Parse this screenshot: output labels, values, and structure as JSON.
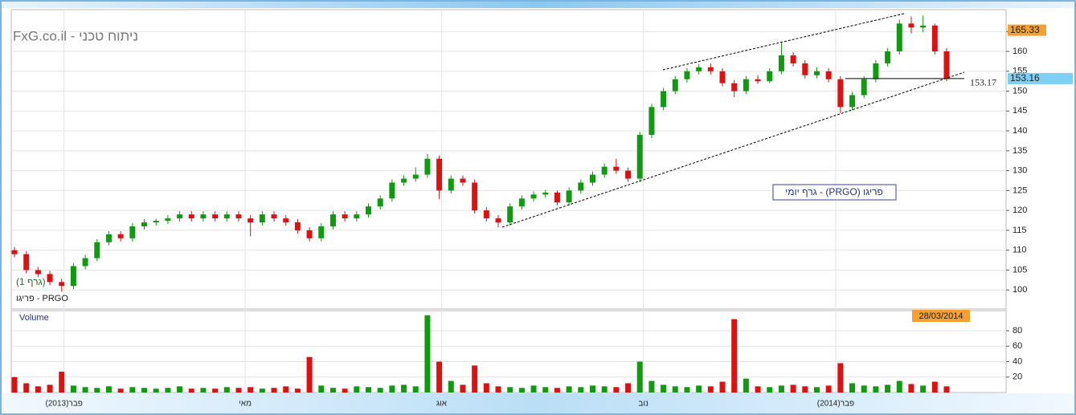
{
  "chart_data": [
    {
      "type": "candlestick",
      "title": "FxG.co.il - ניתוח טכני",
      "subtitle": "גרף יומי - (PRGO) פריגו",
      "label": "פריגו - PRGO",
      "note": "(גרף 1)",
      "up_color": "#119911",
      "down_color": "#dd1111",
      "ohlc": [
        [
          110,
          110.8,
          108.2,
          109
        ],
        [
          109,
          109.8,
          104.2,
          105
        ],
        [
          105,
          105.8,
          103.2,
          104
        ],
        [
          104,
          104.8,
          101.2,
          102
        ],
        [
          102,
          102.8,
          99.6,
          101
        ],
        [
          101,
          106.8,
          100.2,
          106
        ],
        [
          106,
          108.8,
          105.2,
          108
        ],
        [
          108,
          112.8,
          107.2,
          112
        ],
        [
          112,
          114.8,
          111.2,
          114
        ],
        [
          114,
          114.8,
          112.2,
          113
        ],
        [
          113,
          116.8,
          112.2,
          116
        ],
        [
          116,
          117.8,
          115.2,
          117
        ],
        [
          117,
          117.9,
          116.2,
          117.4
        ],
        [
          117.4,
          118.8,
          116.6,
          118
        ],
        [
          118,
          119.8,
          117.2,
          119
        ],
        [
          119,
          119.8,
          117.2,
          118
        ],
        [
          118,
          119.8,
          117.2,
          119
        ],
        [
          119,
          119.8,
          117.2,
          118
        ],
        [
          118,
          119.8,
          117.2,
          119
        ],
        [
          119,
          119.8,
          117.2,
          118
        ],
        [
          118,
          118.8,
          113.5,
          117
        ],
        [
          117,
          119.8,
          116.2,
          119
        ],
        [
          119,
          119.8,
          117.2,
          118
        ],
        [
          118,
          118.8,
          116.2,
          117
        ],
        [
          117,
          117.8,
          114.2,
          115
        ],
        [
          115,
          115.8,
          112.2,
          113
        ],
        [
          113,
          116.8,
          112.2,
          116
        ],
        [
          116,
          119.8,
          115.2,
          119
        ],
        [
          119,
          119.8,
          117.2,
          118
        ],
        [
          118,
          119.8,
          117.2,
          119
        ],
        [
          119,
          121.8,
          118.2,
          121
        ],
        [
          121,
          123.8,
          120.2,
          123
        ],
        [
          123,
          127.8,
          122.2,
          127
        ],
        [
          127,
          128.8,
          126.2,
          128
        ],
        [
          128,
          130.8,
          127.2,
          129
        ],
        [
          129,
          134.2,
          128.2,
          133
        ],
        [
          133,
          133.8,
          122.8,
          125
        ],
        [
          125,
          128.8,
          124.2,
          128
        ],
        [
          128,
          128.8,
          126.2,
          127
        ],
        [
          127,
          127.8,
          119.2,
          120
        ],
        [
          120,
          120.8,
          117.2,
          118
        ],
        [
          118,
          118.8,
          115.8,
          117
        ],
        [
          117,
          121.8,
          116.2,
          121
        ],
        [
          121,
          123.8,
          120.2,
          123
        ],
        [
          123,
          124.8,
          122.2,
          124
        ],
        [
          124,
          125.2,
          123.2,
          124.5
        ],
        [
          124.5,
          125,
          121.2,
          122
        ],
        [
          122,
          125.8,
          121.2,
          125
        ],
        [
          125,
          127.8,
          124.2,
          127
        ],
        [
          127,
          129.8,
          126.2,
          129
        ],
        [
          129,
          131.8,
          128.2,
          131
        ],
        [
          131,
          133,
          129.2,
          130
        ],
        [
          130,
          130.8,
          127.2,
          128
        ],
        [
          128,
          139.8,
          127.2,
          139
        ],
        [
          139,
          146.8,
          138.2,
          146
        ],
        [
          146,
          150.8,
          145.2,
          150
        ],
        [
          150,
          153.8,
          149.2,
          153
        ],
        [
          153,
          155.8,
          152.2,
          155
        ],
        [
          155,
          156.8,
          154.2,
          156
        ],
        [
          156,
          157,
          154.2,
          155
        ],
        [
          155,
          155.8,
          151.2,
          152
        ],
        [
          152,
          152.8,
          148.5,
          150
        ],
        [
          150,
          153.8,
          149.2,
          153
        ],
        [
          153,
          154,
          151.8,
          152.5
        ],
        [
          152.5,
          155.8,
          152,
          155
        ],
        [
          155,
          162.2,
          154.2,
          159
        ],
        [
          159,
          159.8,
          156.2,
          157
        ],
        [
          157,
          157.8,
          153.2,
          154
        ],
        [
          154,
          156,
          153.2,
          155
        ],
        [
          155,
          155.8,
          152.2,
          153
        ],
        [
          153,
          153.8,
          144.5,
          146
        ],
        [
          146,
          149.8,
          145.2,
          149
        ],
        [
          149,
          153.8,
          148.2,
          153
        ],
        [
          153,
          157.8,
          152.2,
          157
        ],
        [
          157,
          160.8,
          156.2,
          160
        ],
        [
          160,
          168,
          159.2,
          167
        ],
        [
          167,
          168.8,
          164.5,
          166
        ],
        [
          166,
          169,
          164.8,
          166.5
        ],
        [
          166.5,
          167,
          159.2,
          160
        ],
        [
          160,
          160.8,
          152.5,
          153.16
        ]
      ],
      "xticks": [
        {
          "value": 4.2,
          "label": "(2013)פבר"
        },
        {
          "value": 19.55,
          "label": "מאי"
        },
        {
          "value": 36.2,
          "label": "אוג"
        },
        {
          "value": 53.3,
          "label": "נוב"
        },
        {
          "value": 69.6,
          "label": "(2014)פבר"
        }
      ],
      "ylim": [
        95.2,
        170.5
      ],
      "yticks": [
        100,
        105,
        110,
        115,
        120,
        125,
        130,
        135,
        140,
        145,
        150,
        155,
        160,
        165
      ],
      "grid": true,
      "level": 153.17,
      "price_tags": [
        {
          "value": 165.33,
          "color": "#f5a030"
        },
        {
          "value": 153.16,
          "color": "#7fd0f5"
        }
      ]
    },
    {
      "type": "bar",
      "title": "Volume",
      "date_tag": "28/03/2014",
      "values": [
        20,
        12,
        8,
        10,
        27,
        9,
        7,
        6,
        8,
        5,
        7,
        6,
        5,
        6,
        8,
        5,
        6,
        5,
        7,
        6,
        7,
        5,
        6,
        8,
        5,
        46,
        9,
        6,
        5,
        8,
        7,
        6,
        9,
        10,
        8,
        100,
        40,
        15,
        10,
        35,
        12,
        8,
        7,
        6,
        9,
        7,
        6,
        8,
        7,
        9,
        8,
        7,
        12,
        40,
        15,
        10,
        8,
        7,
        9,
        8,
        14,
        95,
        18,
        8,
        7,
        9,
        10,
        8,
        7,
        9,
        38,
        12,
        9,
        8,
        10,
        15,
        11,
        9,
        14,
        8
      ],
      "ylim": [
        0,
        106
      ],
      "yticks": [
        20,
        40,
        60,
        80
      ],
      "grid": true
    }
  ]
}
